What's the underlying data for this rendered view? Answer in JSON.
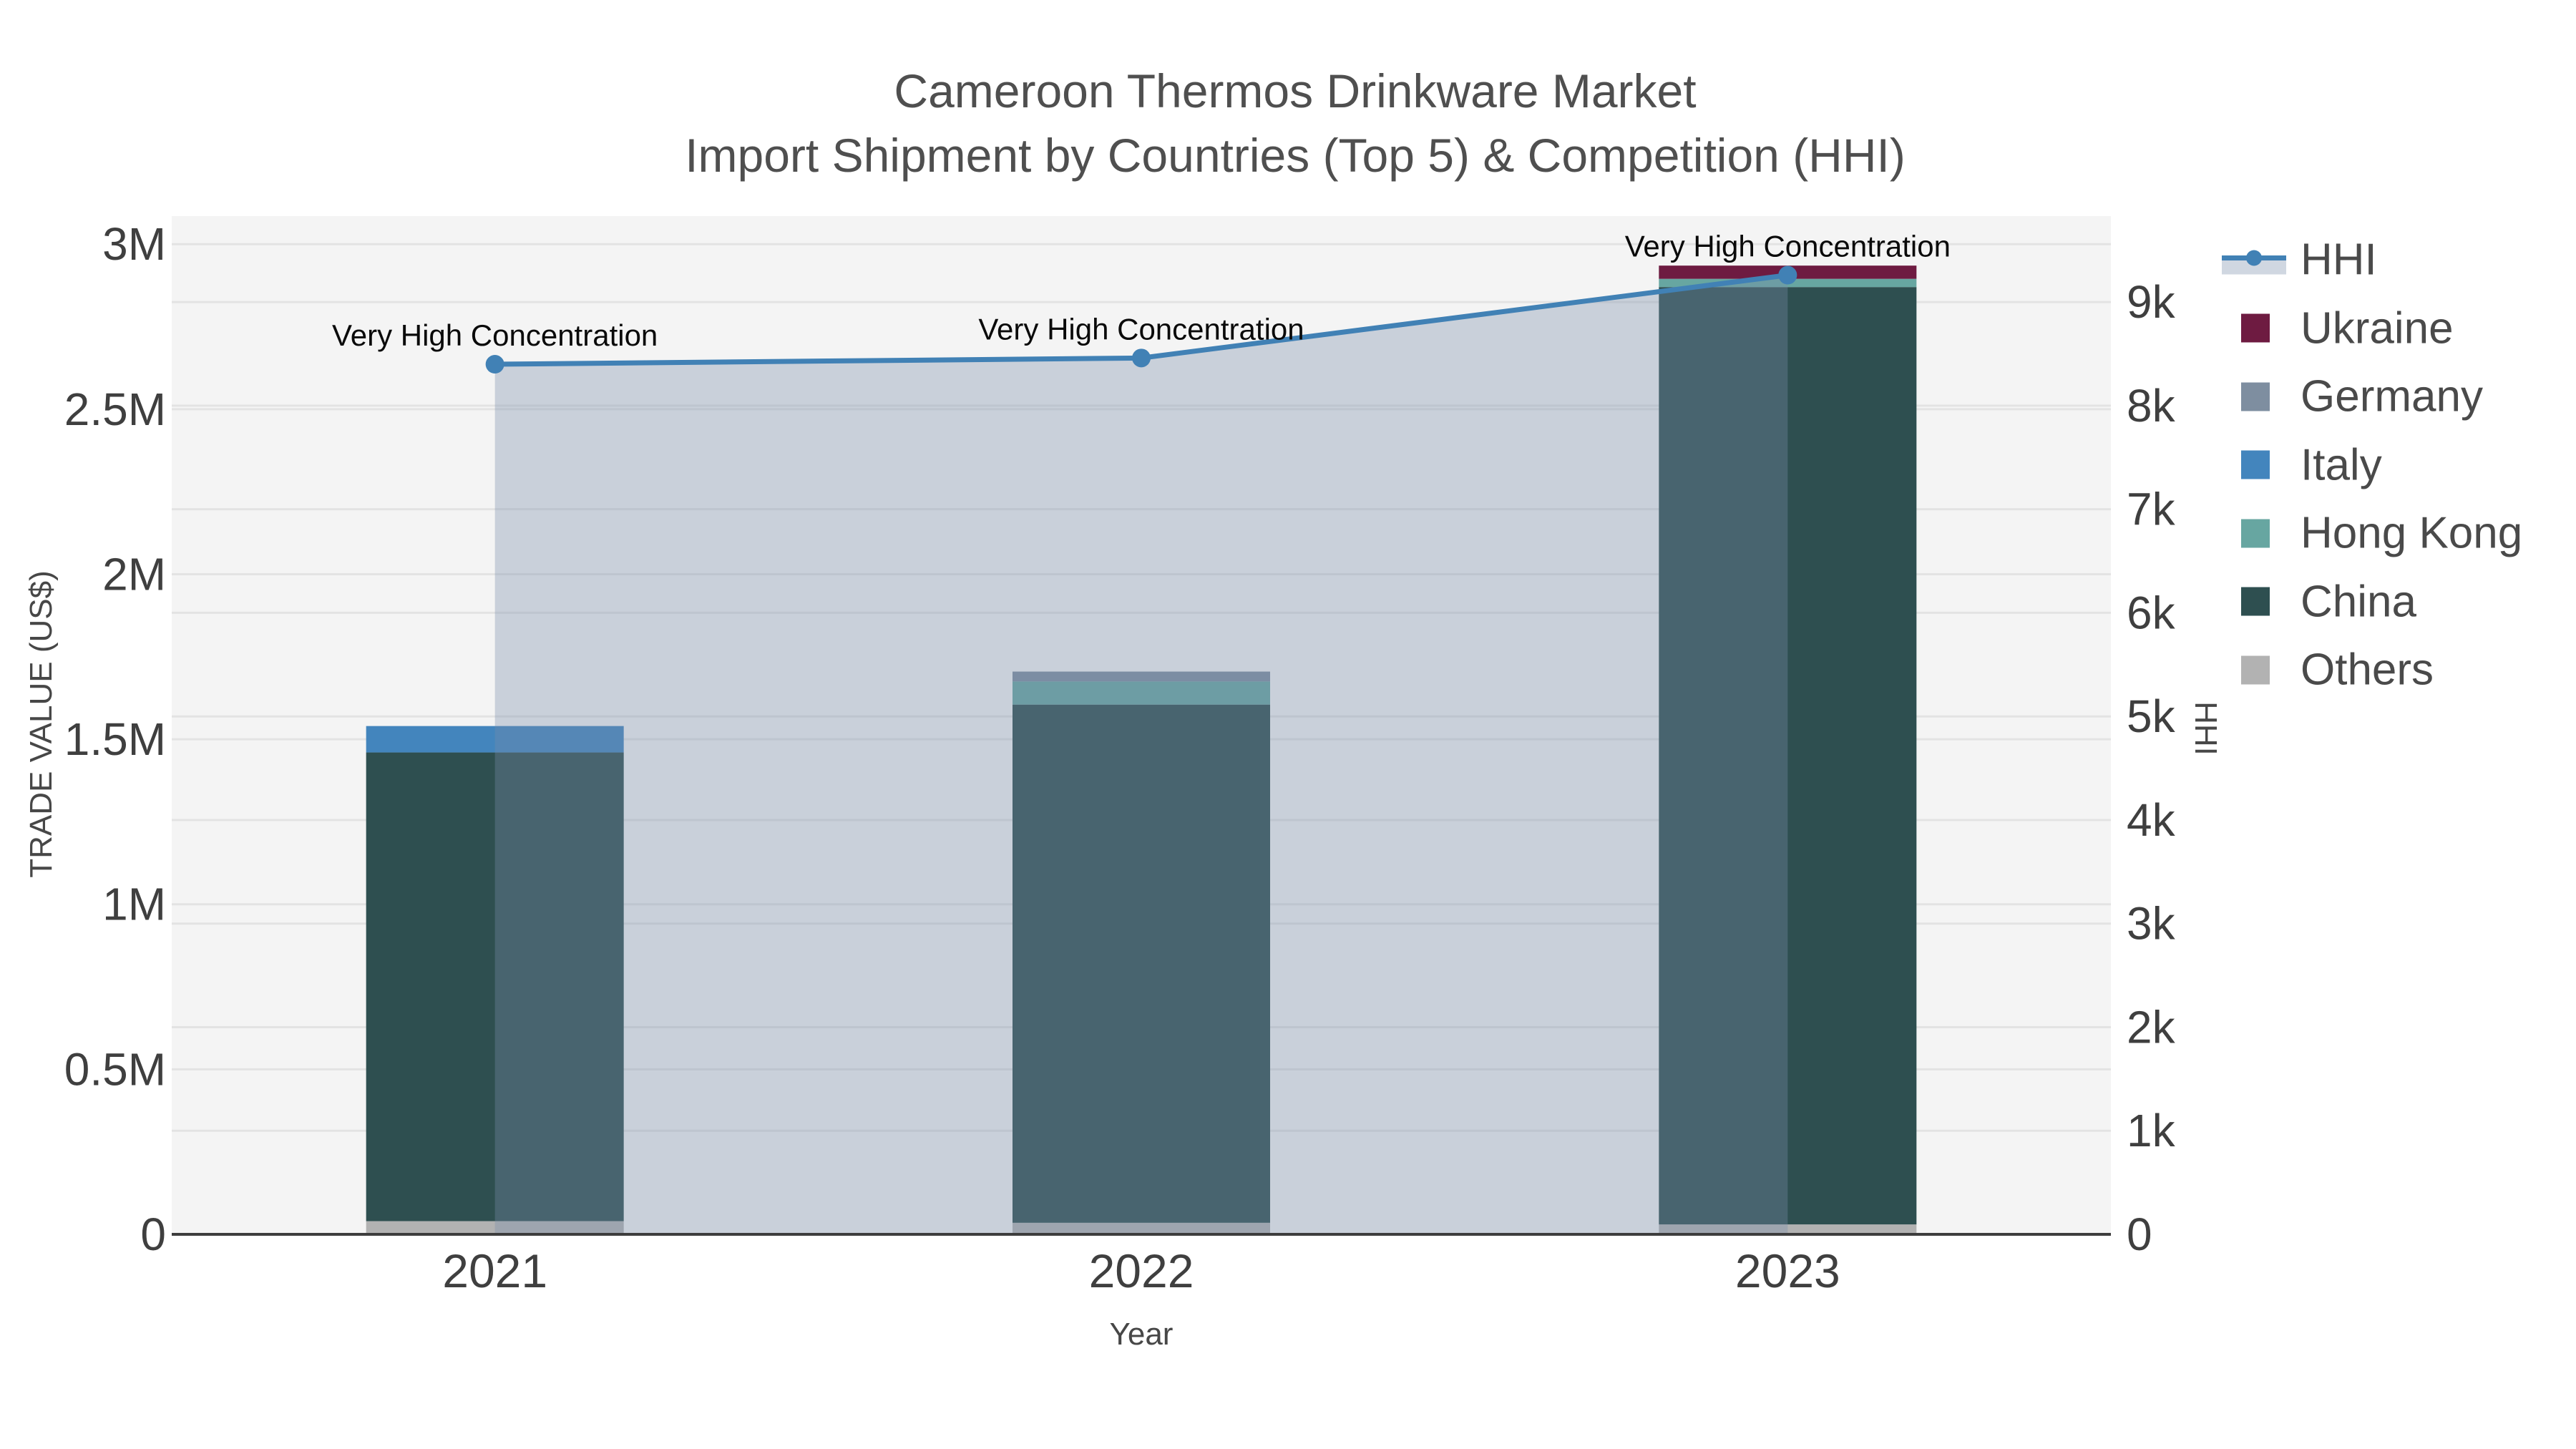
{
  "chart_data": {
    "type": "combo-stacked-bar-line",
    "title": [
      "Cameroon Thermos Drinkware Market",
      "Import Shipment by Countries (Top 5) & Competition (HHI)"
    ],
    "xlabel": "Year",
    "ylabel_left": "TRADE VALUE (US$)",
    "ylabel_right": "HHI",
    "categories": [
      "2021",
      "2022",
      "2023"
    ],
    "bar_series": [
      {
        "name": "Others",
        "color": "#b2b2b2",
        "values": [
          40000,
          35000,
          30000
        ]
      },
      {
        "name": "China",
        "color": "#2e4f50",
        "values": [
          1420000,
          1570000,
          2840000
        ]
      },
      {
        "name": "Hong Kong",
        "color": "#67a6a1",
        "values": [
          0,
          70000,
          25000
        ]
      },
      {
        "name": "Italy",
        "color": "#4385bd",
        "values": [
          80000,
          0,
          0
        ]
      },
      {
        "name": "Germany",
        "color": "#7e8ea0",
        "values": [
          0,
          30000,
          0
        ]
      },
      {
        "name": "Ukraine",
        "color": "#6e1b41",
        "values": [
          0,
          0,
          40000
        ]
      }
    ],
    "line_series": {
      "name": "HHI",
      "color": "#4181b5",
      "fill": "rgba(120,140,170,0.35)",
      "values": [
        8400,
        8460,
        9260
      ]
    },
    "annotations": [
      {
        "category": "2021",
        "text": "Very High Concentration"
      },
      {
        "category": "2022",
        "text": "Very High Concentration"
      },
      {
        "category": "2023",
        "text": "Very High Concentration"
      }
    ],
    "y_left": {
      "range": [
        0,
        3085000
      ],
      "ticks": [
        {
          "v": 0,
          "label": "0"
        },
        {
          "v": 500000,
          "label": "0.5M"
        },
        {
          "v": 1000000,
          "label": "1M"
        },
        {
          "v": 1500000,
          "label": "1.5M"
        },
        {
          "v": 2000000,
          "label": "2M"
        },
        {
          "v": 2500000,
          "label": "2.5M"
        },
        {
          "v": 3000000,
          "label": "3M"
        }
      ]
    },
    "y_right": {
      "range": [
        0,
        9830
      ],
      "ticks": [
        {
          "v": 0,
          "label": "0"
        },
        {
          "v": 1000,
          "label": "1k"
        },
        {
          "v": 2000,
          "label": "2k"
        },
        {
          "v": 3000,
          "label": "3k"
        },
        {
          "v": 4000,
          "label": "4k"
        },
        {
          "v": 5000,
          "label": "5k"
        },
        {
          "v": 6000,
          "label": "6k"
        },
        {
          "v": 7000,
          "label": "7k"
        },
        {
          "v": 8000,
          "label": "8k"
        },
        {
          "v": 9000,
          "label": "9k"
        }
      ]
    },
    "legend": [
      "HHI",
      "Ukraine",
      "Germany",
      "Italy",
      "Hong Kong",
      "China",
      "Others"
    ],
    "colors": {
      "plot_bg": "#f4f4f4",
      "grid": "#e3e3e3",
      "axis_line": "#3d3d3d",
      "tick_text": "#3f3f3f",
      "annotation_text": "#0a0a0a"
    }
  }
}
